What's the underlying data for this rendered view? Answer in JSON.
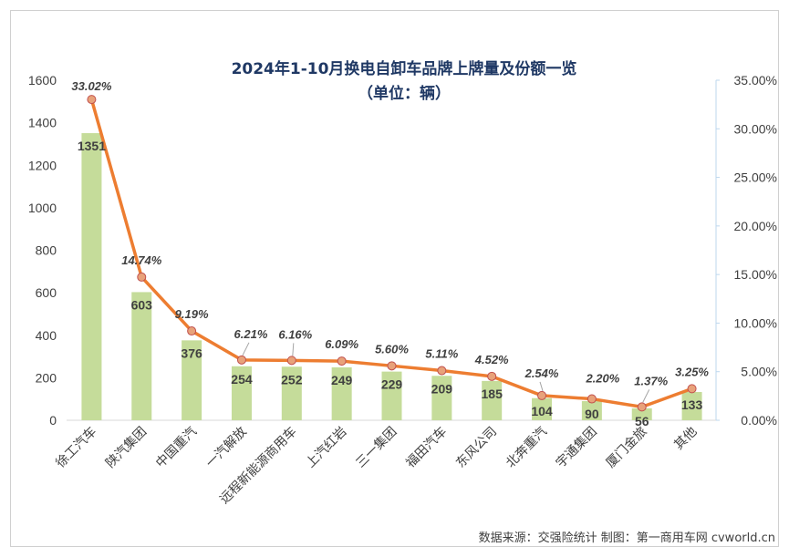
{
  "chart_data": {
    "type": "bar",
    "title": "2024年1-10月换电自卸车品牌上牌量及份额一览",
    "subtitle": "（单位：辆）",
    "categories": [
      "徐工汽车",
      "陕汽集团",
      "中国重汽",
      "一汽解放",
      "远程新能源商用车",
      "上汽红岩",
      "三一集团",
      "福田汽车",
      "东风公司",
      "北奔重汽",
      "宇通集团",
      "厦门金旅",
      "其他"
    ],
    "series": [
      {
        "type": "bar",
        "axis": "left",
        "values": [
          1351,
          603,
          376,
          254,
          252,
          249,
          229,
          209,
          185,
          104,
          90,
          56,
          133
        ],
        "color": "#c5dc9a"
      },
      {
        "type": "line",
        "axis": "right",
        "values": [
          33.02,
          14.74,
          9.19,
          6.21,
          6.16,
          6.09,
          5.6,
          5.11,
          4.52,
          2.54,
          2.2,
          1.37,
          3.25
        ],
        "labels": [
          "33.02%",
          "14.74%",
          "9.19%",
          "6.21%",
          "6.16%",
          "6.09%",
          "5.60%",
          "5.11%",
          "4.52%",
          "2.54%",
          "2.20%",
          "1.37%",
          "3.25%"
        ],
        "color": "#ed7d31",
        "marker_color": "#e8a27a"
      }
    ],
    "y_left": {
      "min": 0,
      "max": 1600,
      "ticks": [
        "0",
        "200",
        "400",
        "600",
        "800",
        "1000",
        "1200",
        "1400",
        "1600"
      ]
    },
    "y_right": {
      "min": 0,
      "max": 35,
      "ticks": [
        "0.00%",
        "5.00%",
        "10.00%",
        "15.00%",
        "20.00%",
        "25.00%",
        "30.00%",
        "35.00%"
      ]
    },
    "grid": false,
    "legend": "none"
  },
  "source_text": "数据来源：交强险统计 制图：第一商用车网 cvworld.cn"
}
